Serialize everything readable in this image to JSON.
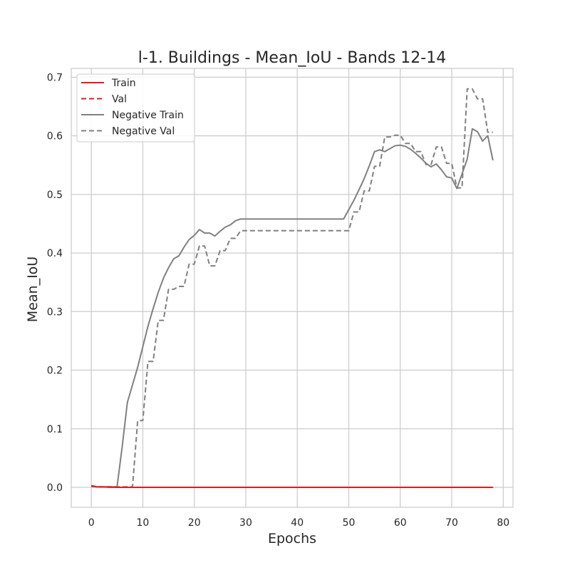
{
  "chart_data": {
    "type": "line",
    "title": "l-1. Buildings - Mean_IoU - Bands 12-14",
    "xlabel": "Epochs",
    "ylabel": "Mean_IoU",
    "xlim": [
      -3.9,
      81.9
    ],
    "ylim": [
      -0.034,
      0.715
    ],
    "xticks": [
      0,
      10,
      20,
      30,
      40,
      50,
      60,
      70,
      80
    ],
    "yticks": [
      0.0,
      0.1,
      0.2,
      0.3,
      0.4,
      0.5,
      0.6,
      0.7
    ],
    "grid": true,
    "legend_position": "top-left",
    "series": [
      {
        "name": "Train",
        "color": "#e41a1c",
        "style": "solid",
        "x": [
          0,
          1,
          5,
          10,
          20,
          30,
          40,
          50,
          60,
          70,
          78
        ],
        "y": [
          0.003,
          0.001,
          0.0,
          0.0,
          0.0,
          0.0,
          0.0,
          0.0,
          0.0,
          0.0,
          0.0
        ]
      },
      {
        "name": "Val",
        "color": "#e41a1c",
        "style": "dashed",
        "x": [
          0,
          1,
          5,
          10,
          20,
          30,
          40,
          50,
          60,
          70,
          78
        ],
        "y": [
          0.002,
          0.001,
          0.0,
          0.0,
          0.0,
          0.0,
          0.0,
          0.0,
          0.0,
          0.0,
          0.0
        ]
      },
      {
        "name": "Negative Train",
        "color": "#808080",
        "style": "solid",
        "x": [
          0,
          1,
          2,
          3,
          4,
          5,
          6,
          7,
          8,
          9,
          10,
          11,
          12,
          13,
          14,
          15,
          16,
          17,
          18,
          19,
          20,
          21,
          22,
          23,
          24,
          25,
          26,
          27,
          28,
          29,
          30,
          31,
          32,
          33,
          34,
          35,
          36,
          37,
          38,
          39,
          40,
          41,
          42,
          43,
          44,
          45,
          46,
          47,
          48,
          49,
          50,
          51,
          52,
          53,
          54,
          55,
          56,
          57,
          58,
          59,
          60,
          61,
          62,
          63,
          64,
          65,
          66,
          67,
          68,
          69,
          70,
          71,
          72,
          73,
          74,
          75,
          76,
          77,
          78
        ],
        "y": [
          0.003,
          0.001,
          0.001,
          0.001,
          0.001,
          0.001,
          0.07,
          0.145,
          0.175,
          0.205,
          0.24,
          0.275,
          0.305,
          0.333,
          0.357,
          0.375,
          0.39,
          0.395,
          0.41,
          0.423,
          0.43,
          0.44,
          0.434,
          0.434,
          0.429,
          0.437,
          0.444,
          0.448,
          0.455,
          0.458,
          0.458,
          0.458,
          0.458,
          0.458,
          0.458,
          0.458,
          0.458,
          0.458,
          0.458,
          0.458,
          0.458,
          0.458,
          0.458,
          0.458,
          0.458,
          0.458,
          0.458,
          0.458,
          0.458,
          0.458,
          0.474,
          0.49,
          0.508,
          0.527,
          0.549,
          0.573,
          0.576,
          0.573,
          0.578,
          0.583,
          0.584,
          0.582,
          0.577,
          0.57,
          0.562,
          0.553,
          0.547,
          0.552,
          0.542,
          0.53,
          0.528,
          0.51,
          0.535,
          0.56,
          0.612,
          0.607,
          0.591,
          0.6,
          0.558
        ]
      },
      {
        "name": "Negative Val",
        "color": "#808080",
        "style": "dashed",
        "x": [
          0,
          1,
          2,
          3,
          4,
          5,
          6,
          7,
          8,
          9,
          10,
          11,
          12,
          13,
          14,
          15,
          16,
          17,
          18,
          19,
          20,
          21,
          22,
          23,
          24,
          25,
          26,
          27,
          28,
          29,
          30,
          31,
          32,
          33,
          34,
          35,
          36,
          37,
          38,
          39,
          40,
          41,
          42,
          43,
          44,
          45,
          46,
          47,
          48,
          49,
          50,
          51,
          52,
          53,
          54,
          55,
          56,
          57,
          58,
          59,
          60,
          61,
          62,
          63,
          64,
          65,
          66,
          67,
          68,
          69,
          70,
          71,
          72,
          73,
          74,
          75,
          76,
          77,
          78
        ],
        "y": [
          0.002,
          0.001,
          0.001,
          0.001,
          0.001,
          0.001,
          0.001,
          0.001,
          0.001,
          0.114,
          0.114,
          0.215,
          0.215,
          0.285,
          0.285,
          0.338,
          0.338,
          0.343,
          0.343,
          0.381,
          0.381,
          0.412,
          0.412,
          0.378,
          0.378,
          0.404,
          0.404,
          0.425,
          0.425,
          0.438,
          0.438,
          0.438,
          0.438,
          0.438,
          0.438,
          0.438,
          0.438,
          0.438,
          0.438,
          0.438,
          0.438,
          0.438,
          0.438,
          0.438,
          0.438,
          0.438,
          0.438,
          0.438,
          0.438,
          0.438,
          0.438,
          0.47,
          0.47,
          0.506,
          0.506,
          0.548,
          0.548,
          0.598,
          0.598,
          0.601,
          0.601,
          0.587,
          0.587,
          0.573,
          0.573,
          0.551,
          0.551,
          0.581,
          0.581,
          0.553,
          0.553,
          0.511,
          0.511,
          0.68,
          0.68,
          0.663,
          0.663,
          0.606,
          0.606
        ]
      }
    ]
  }
}
